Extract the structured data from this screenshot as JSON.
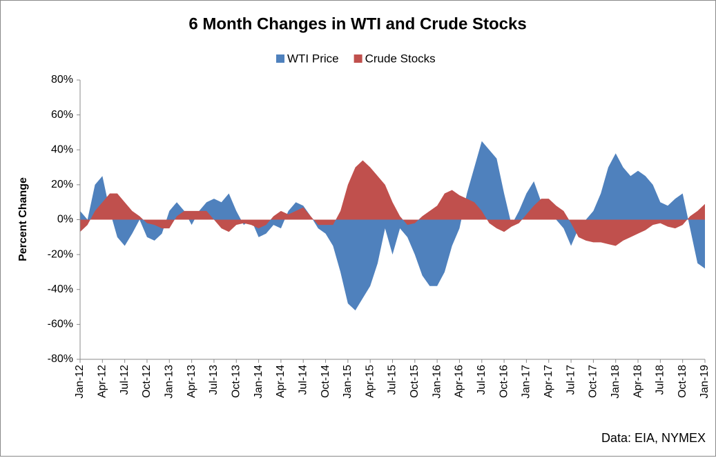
{
  "chart_data": {
    "type": "area",
    "title": "6 Month Changes in WTI and Crude Stocks",
    "ylabel": "Percent Change",
    "source": "Data: EIA, NYMEX",
    "legend": "top",
    "categories": [
      "Jan-12",
      null,
      null,
      "Apr-12",
      null,
      null,
      "Jul-12",
      null,
      null,
      "Oct-12",
      null,
      null,
      "Jan-13",
      null,
      null,
      "Apr-13",
      null,
      null,
      "Jul-13",
      null,
      null,
      "Oct-13",
      null,
      null,
      "Jan-14",
      null,
      null,
      "Apr-14",
      null,
      null,
      "Jul-14",
      null,
      null,
      "Oct-14",
      null,
      null,
      "Jan-15",
      null,
      null,
      "Apr-15",
      null,
      null,
      "Jul-15",
      null,
      null,
      "Oct-15",
      null,
      null,
      "Jan-16",
      null,
      null,
      "Apr-16",
      null,
      null,
      "Jul-16",
      null,
      null,
      "Oct-16",
      null,
      null,
      "Jan-17",
      null,
      null,
      "Apr-17",
      null,
      null,
      "Jul-17",
      null,
      null,
      "Oct-17",
      null,
      null,
      "Jan-18",
      null,
      null,
      "Apr-18",
      null,
      null,
      "Jul-18",
      null,
      null,
      "Oct-18",
      null,
      null,
      "Jan-19"
    ],
    "series": [
      {
        "name": "WTI Price",
        "color": "#4f81bd",
        "values": [
          5,
          0,
          20,
          25,
          5,
          -10,
          -15,
          -8,
          0,
          -10,
          -12,
          -8,
          5,
          10,
          5,
          -3,
          5,
          10,
          12,
          10,
          15,
          5,
          -3,
          0,
          -10,
          -8,
          -3,
          -5,
          5,
          10,
          8,
          2,
          -5,
          -8,
          -15,
          -30,
          -48,
          -52,
          -45,
          -38,
          -25,
          -5,
          -20,
          -5,
          -10,
          -20,
          -32,
          -38,
          -38,
          -30,
          -15,
          -5,
          15,
          30,
          45,
          40,
          35,
          15,
          -3,
          5,
          15,
          22,
          10,
          5,
          0,
          -5,
          -15,
          -5,
          0,
          5,
          15,
          30,
          38,
          30,
          25,
          28,
          25,
          20,
          10,
          8,
          12,
          15,
          -5,
          -25,
          -28
        ]
      },
      {
        "name": "Crude Stocks",
        "color": "#c0504d",
        "values": [
          -7,
          -3,
          5,
          10,
          15,
          15,
          10,
          5,
          2,
          -2,
          -3,
          -5,
          -5,
          2,
          5,
          5,
          5,
          5,
          0,
          -5,
          -7,
          -3,
          -2,
          -3,
          -5,
          -3,
          2,
          5,
          3,
          5,
          7,
          2,
          -3,
          -3,
          -3,
          5,
          20,
          30,
          34,
          30,
          25,
          20,
          10,
          2,
          -3,
          -2,
          2,
          5,
          8,
          15,
          17,
          14,
          12,
          10,
          5,
          -2,
          -5,
          -7,
          -4,
          -2,
          3,
          8,
          12,
          12,
          8,
          5,
          -2,
          -10,
          -12,
          -13,
          -13,
          -14,
          -15,
          -12,
          -10,
          -8,
          -6,
          -3,
          -2,
          -4,
          -5,
          -3,
          2,
          5,
          9
        ]
      }
    ],
    "ylim": [
      -80,
      80
    ],
    "yticks": [
      {
        "value": -80,
        "label": "-80%"
      },
      {
        "value": -60,
        "label": "-60%"
      },
      {
        "value": -40,
        "label": "-40%"
      },
      {
        "value": -20,
        "label": "-20%"
      },
      {
        "value": 0,
        "label": "0%"
      },
      {
        "value": 20,
        "label": "20%"
      },
      {
        "value": 40,
        "label": "40%"
      },
      {
        "value": 60,
        "label": "60%"
      },
      {
        "value": 80,
        "label": "80%"
      }
    ],
    "grid": false
  }
}
